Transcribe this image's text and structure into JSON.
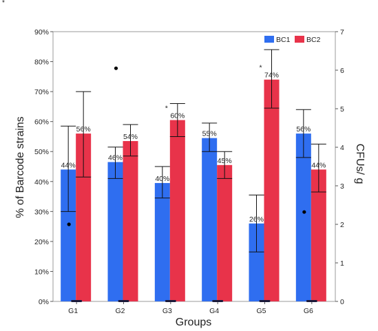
{
  "corner_mark": "*",
  "colors": {
    "bc1": "#2f6ef0",
    "bc2": "#e8334a",
    "frame": "#999999",
    "error_bar": "#111111",
    "dot": "#000000"
  },
  "chart_data": {
    "type": "bar",
    "title": "",
    "xlabel": "Groups",
    "ylabel": "% of Barcode strains",
    "ylabel_right": "CFUs/ g",
    "categories": [
      "G1",
      "G2",
      "G3",
      "G4",
      "G5",
      "G6"
    ],
    "ylim": [
      0,
      90
    ],
    "yticks": [
      0,
      10,
      20,
      30,
      40,
      50,
      60,
      70,
      80,
      90
    ],
    "ytick_labels": [
      "0%",
      "10%",
      "20%",
      "30%",
      "40%",
      "50%",
      "60%",
      "70%",
      "80%",
      "90%"
    ],
    "ylim_right": [
      0,
      7
    ],
    "yticks_right": [
      0,
      1,
      2,
      3,
      4,
      5,
      6,
      7
    ],
    "ytick_labels_right": [
      "0",
      "1",
      "2",
      "3",
      "4",
      "5",
      "6",
      "7"
    ],
    "legend_position": "top-right",
    "grid": false,
    "series": [
      {
        "name": "BC1",
        "color_key": "bc1",
        "values": [
          44,
          46.5,
          39.5,
          54.5,
          26,
          56
        ],
        "labels": [
          "44%",
          "46%",
          "40%",
          "55%",
          "26%",
          "56%"
        ],
        "error_low": [
          30,
          41,
          34.5,
          50,
          16.5,
          48
        ],
        "error_high": [
          58.5,
          51.5,
          45,
          59.5,
          35.5,
          64
        ],
        "significance": [
          "",
          "",
          "",
          "",
          "",
          ""
        ]
      },
      {
        "name": "BC2",
        "color_key": "bc2",
        "values": [
          56,
          53.5,
          60.5,
          45.5,
          74,
          44
        ],
        "labels": [
          "56%",
          "54%",
          "60%",
          "45%",
          "74%",
          "44%"
        ],
        "error_low": [
          41.5,
          48.5,
          55,
          41,
          64.5,
          36.5
        ],
        "error_high": [
          70,
          59,
          66,
          50,
          84,
          52.5
        ],
        "significance": [
          "",
          "",
          "*",
          "",
          "*",
          ""
        ]
      }
    ],
    "cfu_points": {
      "unit_axis": "right",
      "values": [
        2.0,
        6.05,
        null,
        null,
        null,
        2.32
      ]
    },
    "baseline_dot_count": 6
  }
}
